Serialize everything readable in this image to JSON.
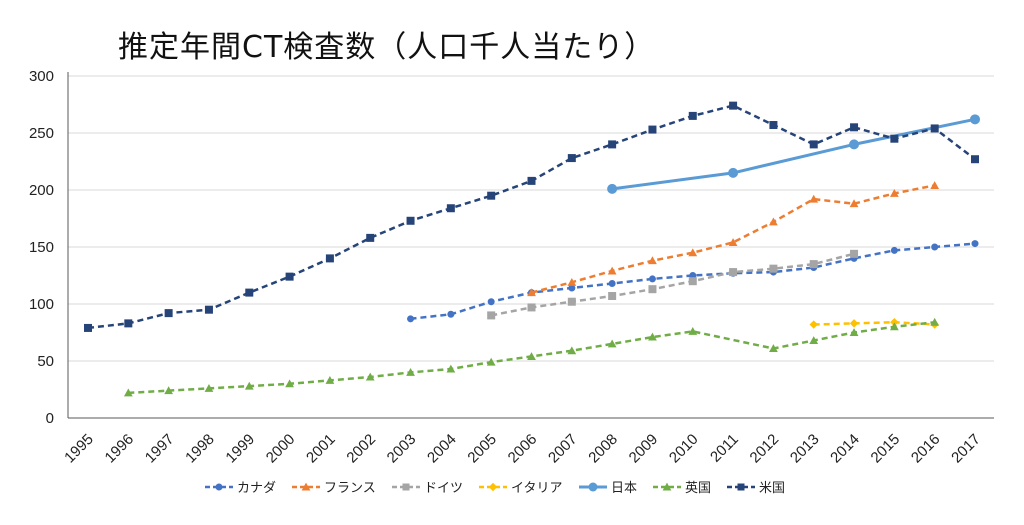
{
  "chart_data": {
    "type": "line",
    "title": "推定年間CT検査数（人口千人当たり）",
    "xlabel": "",
    "ylabel": "",
    "ylim": [
      0,
      300
    ],
    "yticks": [
      0,
      50,
      100,
      150,
      200,
      250,
      300
    ],
    "x": [
      1995,
      1996,
      1997,
      1998,
      1999,
      2000,
      2001,
      2002,
      2003,
      2004,
      2005,
      2006,
      2007,
      2008,
      2009,
      2010,
      2011,
      2012,
      2013,
      2014,
      2015,
      2016,
      2017
    ],
    "grid": "horizontal",
    "legend_position": "bottom",
    "series": [
      {
        "name": "カナダ",
        "color": "#4472C4",
        "marker": "circle",
        "dash": "dashed",
        "values": [
          null,
          null,
          null,
          null,
          null,
          null,
          null,
          null,
          87,
          91,
          102,
          110,
          114,
          118,
          122,
          125,
          127,
          128,
          132,
          140,
          147,
          150,
          153
        ]
      },
      {
        "name": "フランス",
        "color": "#ED7D31",
        "marker": "triangle",
        "dash": "dashed",
        "values": [
          null,
          null,
          null,
          null,
          null,
          null,
          null,
          null,
          null,
          null,
          null,
          110,
          119,
          129,
          138,
          145,
          154,
          172,
          192,
          188,
          197,
          204,
          null
        ]
      },
      {
        "name": "ドイツ",
        "color": "#A5A5A5",
        "marker": "square",
        "dash": "dashed",
        "values": [
          null,
          null,
          null,
          null,
          null,
          null,
          null,
          null,
          null,
          null,
          90,
          97,
          102,
          107,
          113,
          120,
          128,
          131,
          135,
          144,
          null,
          null,
          null
        ]
      },
      {
        "name": "イタリア",
        "color": "#FFC000",
        "marker": "diamond",
        "dash": "dashed",
        "values": [
          null,
          null,
          null,
          null,
          null,
          null,
          null,
          null,
          null,
          null,
          null,
          null,
          null,
          null,
          null,
          null,
          null,
          null,
          82,
          83,
          84,
          82,
          null
        ]
      },
      {
        "name": "日本",
        "color": "#5B9BD5",
        "marker": "circle",
        "dash": "solid",
        "values": [
          null,
          null,
          null,
          null,
          null,
          null,
          null,
          null,
          null,
          null,
          null,
          null,
          null,
          201,
          null,
          null,
          215,
          null,
          null,
          240,
          null,
          null,
          262
        ]
      },
      {
        "name": "英国",
        "color": "#70AD47",
        "marker": "triangle",
        "dash": "dashed",
        "values": [
          null,
          22,
          24,
          26,
          28,
          30,
          33,
          36,
          40,
          43,
          49,
          54,
          59,
          65,
          71,
          76,
          null,
          61,
          68,
          75,
          80,
          84,
          null
        ]
      },
      {
        "name": "米国",
        "color": "#264478",
        "marker": "square",
        "dash": "dashed",
        "values": [
          79,
          83,
          92,
          95,
          110,
          124,
          140,
          158,
          173,
          184,
          195,
          208,
          228,
          240,
          253,
          265,
          274,
          257,
          240,
          255,
          245,
          254,
          227
        ]
      }
    ]
  }
}
